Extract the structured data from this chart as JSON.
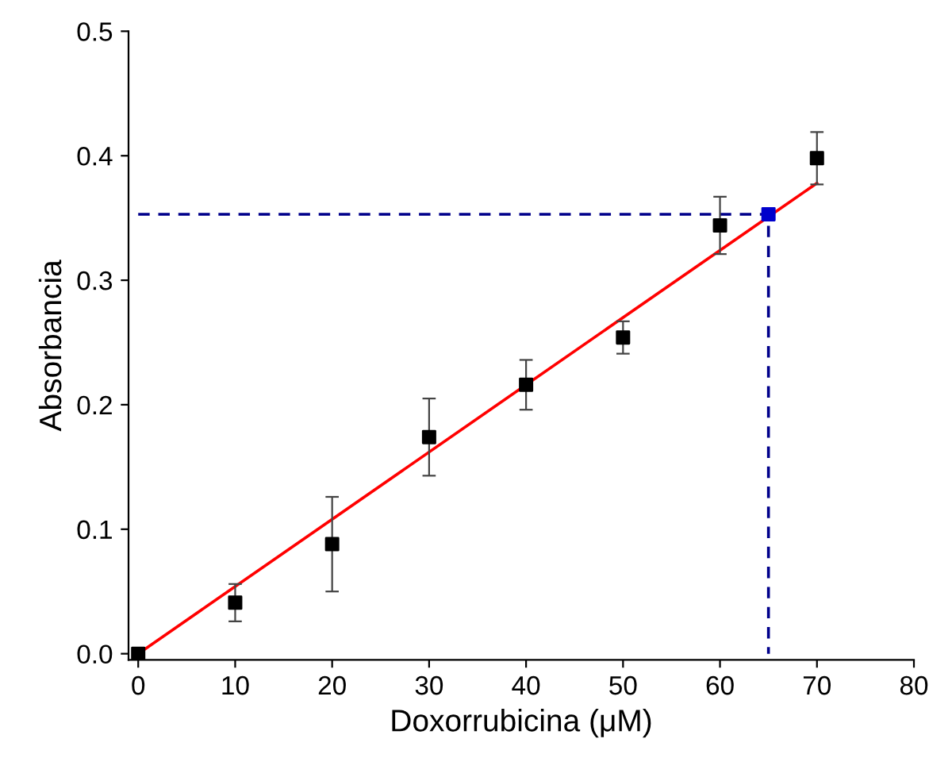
{
  "chart_data": {
    "type": "scatter",
    "xlabel": "Doxorrubicina (μM)",
    "ylabel": "Absorbancia",
    "xlim": [
      -1,
      80
    ],
    "ylim": [
      -0.005,
      0.5
    ],
    "xticks": [
      0,
      10,
      20,
      30,
      40,
      50,
      60,
      70,
      80
    ],
    "yticks": [
      {
        "value": 0,
        "label": "0.0"
      },
      {
        "value": 0.1,
        "label": "0.1"
      },
      {
        "value": 0.2,
        "label": "0.2"
      },
      {
        "value": 0.3,
        "label": "0.3"
      },
      {
        "value": 0.4,
        "label": "0.4"
      },
      {
        "value": 0.5,
        "label": "0.5"
      }
    ],
    "grid": false,
    "legend": false,
    "series": [
      {
        "type": "line",
        "color": "#00008b",
        "x": [
          0,
          65,
          65
        ],
        "values": [
          0.353,
          0.353,
          0
        ],
        "line_style": "dashed",
        "marker": "none"
      },
      {
        "type": "line",
        "color": "#ff0000",
        "x": [
          0,
          70
        ],
        "values": [
          0,
          0.378
        ],
        "line_style": "solid",
        "marker": "none"
      },
      {
        "color": "#000000",
        "marker": "square",
        "x": [
          0,
          10,
          20,
          30,
          40,
          50,
          60,
          70
        ],
        "values": [
          0,
          0.041,
          0.088,
          0.174,
          0.216,
          0.254,
          0.344,
          0.398
        ],
        "errors": [
          null,
          0.015,
          0.038,
          0.031,
          0.02,
          0.013,
          0.023,
          0.021
        ]
      },
      {
        "color": "#0000cc",
        "marker": "square",
        "x": [
          65
        ],
        "values": [
          0.353
        ]
      }
    ]
  }
}
